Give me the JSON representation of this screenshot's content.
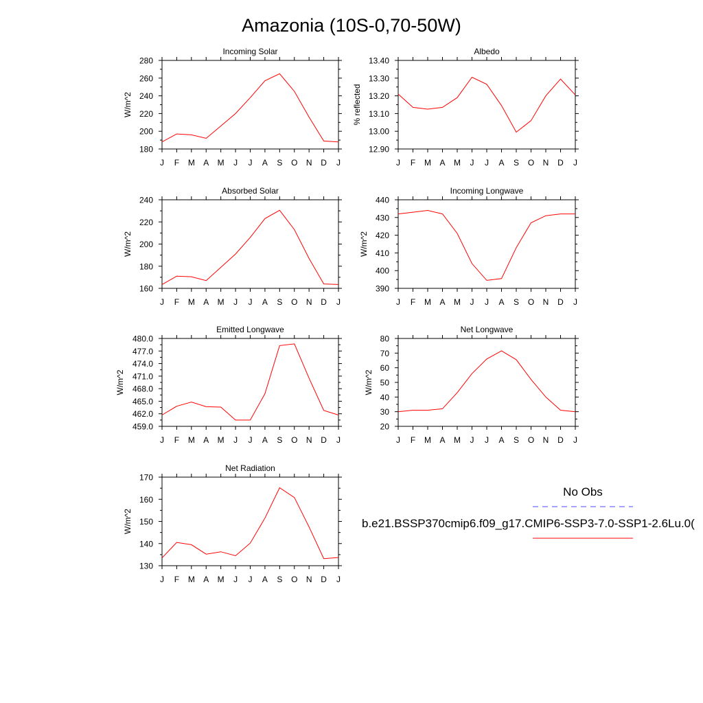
{
  "figure": {
    "title": "Amazonia (10S-0,70-50W)",
    "legend": {
      "obs_label": "No Obs",
      "obs_color": "#4a4aff",
      "model_label": "b.e21.BSSP370cmip6.f09_g17.CMIP6-SSP3-7.0-SSP1-2.6Lu.0(",
      "model_color": "#ff0000"
    }
  },
  "chart_data": [
    {
      "type": "line",
      "title": "Incoming Solar",
      "xlabel": "",
      "ylabel": "W/m^2",
      "x": [
        "J",
        "F",
        "M",
        "A",
        "M",
        "J",
        "J",
        "A",
        "S",
        "O",
        "N",
        "D",
        "J"
      ],
      "ylim": [
        180,
        280
      ],
      "yticks": [
        "180",
        "200",
        "220",
        "240",
        "260",
        "280"
      ],
      "series": [
        {
          "values": [
            188,
            197,
            196,
            192,
            206,
            220,
            238,
            257,
            265,
            245,
            216,
            189,
            188
          ]
        }
      ]
    },
    {
      "type": "line",
      "title": "Albedo",
      "xlabel": "",
      "ylabel": "% reflected",
      "x": [
        "J",
        "F",
        "M",
        "A",
        "M",
        "J",
        "J",
        "A",
        "S",
        "O",
        "N",
        "D",
        "J"
      ],
      "ylim": [
        12.9,
        13.4
      ],
      "yticks": [
        "12.90",
        "13.00",
        "13.10",
        "13.20",
        "13.30",
        "13.40"
      ],
      "series": [
        {
          "values": [
            13.21,
            13.135,
            13.125,
            13.135,
            13.19,
            13.305,
            13.265,
            13.145,
            12.995,
            13.06,
            13.2,
            13.295,
            13.205
          ]
        }
      ]
    },
    {
      "type": "line",
      "title": "Absorbed Solar",
      "xlabel": "",
      "ylabel": "W/m^2",
      "x": [
        "J",
        "F",
        "M",
        "A",
        "M",
        "J",
        "J",
        "A",
        "S",
        "O",
        "N",
        "D",
        "J"
      ],
      "ylim": [
        160,
        240
      ],
      "yticks": [
        "160",
        "180",
        "200",
        "220",
        "240"
      ],
      "series": [
        {
          "values": [
            163.5,
            171,
            170.5,
            167,
            179,
            191,
            206,
            223,
            230.5,
            213,
            187,
            164,
            163.5
          ]
        }
      ]
    },
    {
      "type": "line",
      "title": "Incoming Longwave",
      "xlabel": "",
      "ylabel": "W/m^2",
      "x": [
        "J",
        "F",
        "M",
        "A",
        "M",
        "J",
        "J",
        "A",
        "S",
        "O",
        "N",
        "D",
        "J"
      ],
      "ylim": [
        390,
        440
      ],
      "yticks": [
        "390",
        "400",
        "410",
        "420",
        "430",
        "440"
      ],
      "series": [
        {
          "values": [
            432,
            433,
            434,
            432,
            421,
            404,
            394.5,
            395.5,
            413,
            427,
            431,
            432,
            432
          ]
        }
      ]
    },
    {
      "type": "line",
      "title": "Emitted Longwave",
      "xlabel": "",
      "ylabel": "W/m^2",
      "x": [
        "J",
        "F",
        "M",
        "A",
        "M",
        "J",
        "J",
        "A",
        "S",
        "O",
        "N",
        "D",
        "J"
      ],
      "ylim": [
        459,
        480
      ],
      "yticks": [
        "459.0",
        "462.0",
        "465.0",
        "468.0",
        "471.0",
        "474.0",
        "477.0",
        "480.0"
      ],
      "series": [
        {
          "values": [
            461.7,
            463.8,
            464.8,
            463.7,
            463.6,
            460.5,
            460.5,
            466.8,
            478.3,
            478.7,
            470.5,
            462.8,
            461.7
          ]
        }
      ]
    },
    {
      "type": "line",
      "title": "Net Longwave",
      "xlabel": "",
      "ylabel": "W/m^2",
      "x": [
        "J",
        "F",
        "M",
        "A",
        "M",
        "J",
        "J",
        "A",
        "S",
        "O",
        "N",
        "D",
        "J"
      ],
      "ylim": [
        20,
        80
      ],
      "yticks": [
        "20",
        "30",
        "40",
        "50",
        "60",
        "70",
        "80"
      ],
      "series": [
        {
          "values": [
            30,
            31,
            31,
            32,
            43,
            56,
            66,
            71.5,
            65.5,
            52,
            40,
            31,
            30
          ]
        }
      ]
    },
    {
      "type": "line",
      "title": "Net Radiation",
      "xlabel": "",
      "ylabel": "W/m^2",
      "x": [
        "J",
        "F",
        "M",
        "A",
        "M",
        "J",
        "J",
        "A",
        "S",
        "O",
        "N",
        "D",
        "J"
      ],
      "ylim": [
        130,
        170
      ],
      "yticks": [
        "130",
        "140",
        "150",
        "160",
        "170"
      ],
      "series": [
        {
          "values": [
            133.5,
            140.5,
            139.5,
            135.2,
            136.3,
            134.5,
            140.2,
            151.5,
            165.2,
            160.8,
            147.5,
            133.2,
            133.7
          ]
        }
      ]
    }
  ]
}
